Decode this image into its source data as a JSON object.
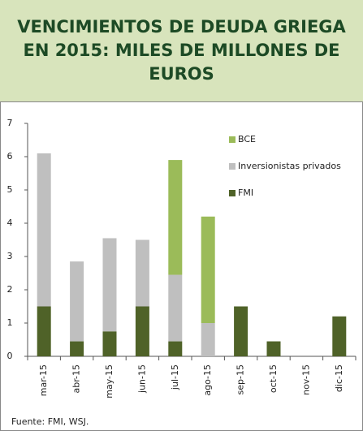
{
  "chart_data": {
    "type": "stacked_bar",
    "title": "VENCIMIENTOS DE DEUDA GRIEGA EN 2015: MILES DE MILLONES DE EUROS",
    "categories": [
      "mar-15",
      "abr-15",
      "may-15",
      "jun-15",
      "jul-15",
      "ago-15",
      "sep-15",
      "oct-15",
      "nov-15",
      "dic-15"
    ],
    "series": [
      {
        "name": "FMI",
        "color": "#4f6228",
        "values": [
          1.5,
          0.45,
          0.75,
          1.5,
          0.45,
          0,
          1.5,
          0.45,
          0,
          1.2
        ]
      },
      {
        "name": "Inversionistas privados",
        "color": "#bfbfbf",
        "values": [
          4.6,
          2.4,
          2.8,
          2.0,
          2.0,
          1.0,
          0,
          0,
          0,
          0
        ]
      },
      {
        "name": "BCE",
        "color": "#9bbb59",
        "values": [
          0,
          0,
          0,
          0,
          3.45,
          3.2,
          0,
          0,
          0,
          0
        ]
      }
    ],
    "ylim": [
      0,
      7
    ],
    "yticks": [
      0,
      1,
      2,
      3,
      4,
      5,
      6,
      7
    ],
    "legend": "upper right",
    "source": "Fuente:  FMI, WSJ."
  }
}
